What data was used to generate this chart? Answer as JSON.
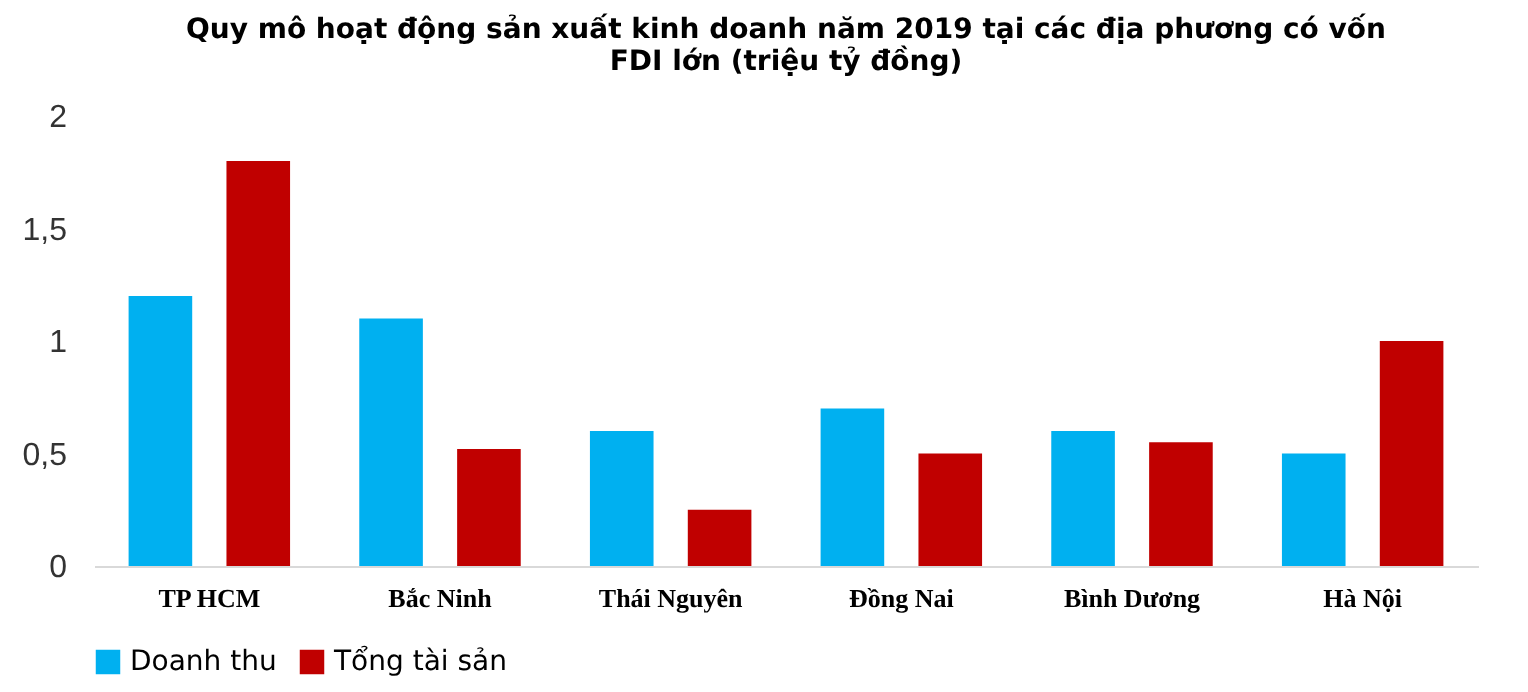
{
  "chart_data": {
    "type": "bar",
    "title": "Quy mô hoạt động sản xuất kinh doanh năm 2019 tại các địa phương có vốn FDI lớn (triệu tỷ đồng)",
    "categories": [
      "TP HCM",
      "Bắc Ninh",
      "Thái Nguyên",
      "Đồng Nai",
      "Bình Dương",
      "Hà Nội"
    ],
    "series": [
      {
        "name": "Doanh thu",
        "color": "#00b0f0",
        "values": [
          1.2,
          1.1,
          0.6,
          0.7,
          0.6,
          0.5
        ]
      },
      {
        "name": "Tổng tài sản",
        "color": "#c00000",
        "values": [
          1.8,
          0.52,
          0.25,
          0.5,
          0.55,
          1.0
        ]
      }
    ],
    "ylim": [
      0,
      2
    ],
    "yticks": [
      0,
      {
        "value": 0.5,
        "label": "0,5"
      },
      1,
      {
        "value": 1.5,
        "label": "1,5"
      },
      2
    ],
    "grid": false,
    "legend": "bottom"
  }
}
